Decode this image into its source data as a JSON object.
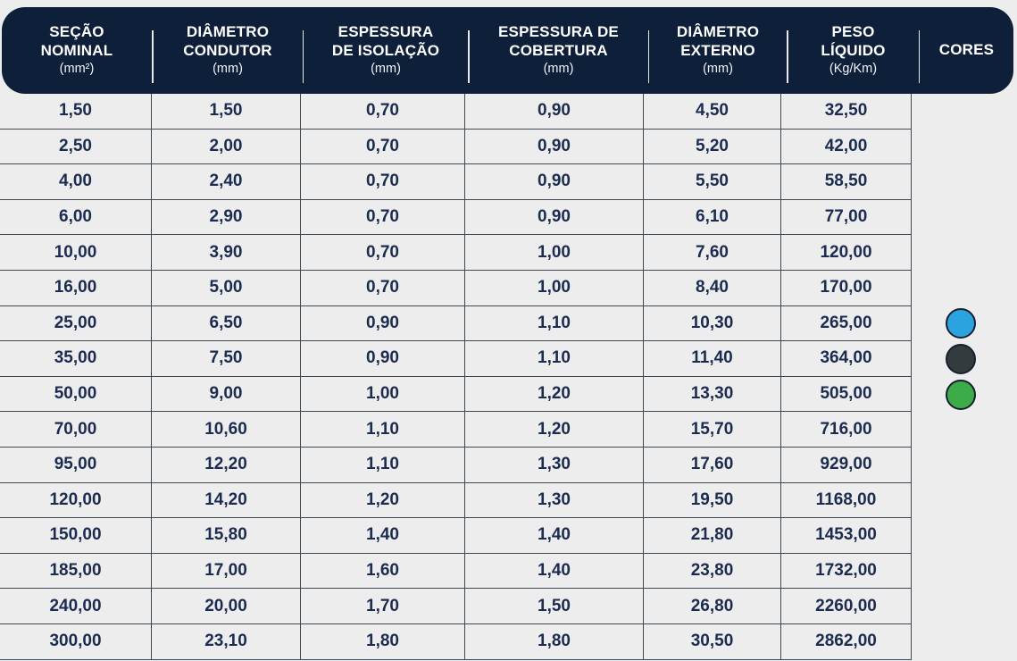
{
  "header": {
    "columns": [
      {
        "line1": "SEÇÃO",
        "line2": "NOMINAL",
        "unit": "(mm²)"
      },
      {
        "line1": "DIÂMETRO",
        "line2": "CONDUTOR",
        "unit": "(mm)"
      },
      {
        "line1": "ESPESSURA",
        "line2": "DE ISOLAÇÃO",
        "unit": "(mm)"
      },
      {
        "line1": "ESPESSURA DE",
        "line2": "COBERTURA",
        "unit": "(mm)"
      },
      {
        "line1": "DIÂMETRO",
        "line2": "EXTERNO",
        "unit": "(mm)"
      },
      {
        "line1": "PESO",
        "line2": "LÍQUIDO",
        "unit": "(Kg/Km)"
      },
      {
        "line1": "CORES",
        "line2": "",
        "unit": ""
      }
    ]
  },
  "rows": [
    [
      "1,50",
      "1,50",
      "0,70",
      "0,90",
      "4,50",
      "32,50"
    ],
    [
      "2,50",
      "2,00",
      "0,70",
      "0,90",
      "5,20",
      "42,00"
    ],
    [
      "4,00",
      "2,40",
      "0,70",
      "0,90",
      "5,50",
      "58,50"
    ],
    [
      "6,00",
      "2,90",
      "0,70",
      "0,90",
      "6,10",
      "77,00"
    ],
    [
      "10,00",
      "3,90",
      "0,70",
      "1,00",
      "7,60",
      "120,00"
    ],
    [
      "16,00",
      "5,00",
      "0,70",
      "1,00",
      "8,40",
      "170,00"
    ],
    [
      "25,00",
      "6,50",
      "0,90",
      "1,10",
      "10,30",
      "265,00"
    ],
    [
      "35,00",
      "7,50",
      "0,90",
      "1,10",
      "11,40",
      "364,00"
    ],
    [
      "50,00",
      "9,00",
      "1,00",
      "1,20",
      "13,30",
      "505,00"
    ],
    [
      "70,00",
      "10,60",
      "1,10",
      "1,20",
      "15,70",
      "716,00"
    ],
    [
      "95,00",
      "12,20",
      "1,10",
      "1,30",
      "17,60",
      "929,00"
    ],
    [
      "120,00",
      "14,20",
      "1,20",
      "1,30",
      "19,50",
      "1168,00"
    ],
    [
      "150,00",
      "15,80",
      "1,40",
      "1,40",
      "21,80",
      "1453,00"
    ],
    [
      "185,00",
      "17,00",
      "1,60",
      "1,40",
      "23,80",
      "1732,00"
    ],
    [
      "240,00",
      "20,00",
      "1,70",
      "1,50",
      "26,80",
      "2260,00"
    ],
    [
      "300,00",
      "23,10",
      "1,80",
      "1,80",
      "30,50",
      "2862,00"
    ]
  ],
  "cores": {
    "dots": [
      {
        "name": "blue",
        "hex": "#2aa3de"
      },
      {
        "name": "black",
        "hex": "#343b3e"
      },
      {
        "name": "green",
        "hex": "#3cab49"
      }
    ]
  },
  "colors": {
    "header_bg": "#0e1f3a",
    "body_bg": "#ededee",
    "grid_border": "#3e4855",
    "cell_text": "#1b2c50"
  }
}
